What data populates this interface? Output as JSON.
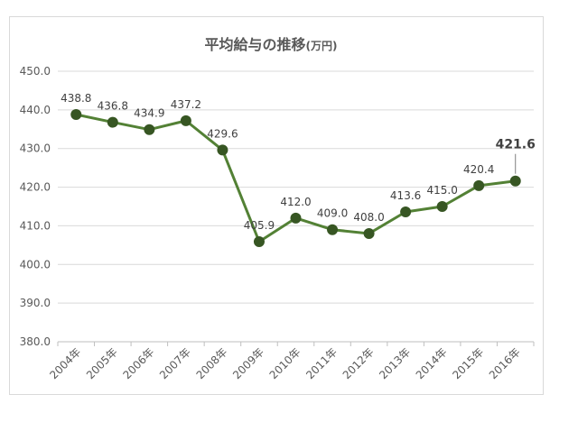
{
  "chart_data": {
    "type": "line",
    "title": "平均給与の推移",
    "title_unit": "(万円)",
    "categories": [
      "2004年",
      "2005年",
      "2006年",
      "2007年",
      "2008年",
      "2009年",
      "2010年",
      "2011年",
      "2012年",
      "2013年",
      "2014年",
      "2015年",
      "2016年"
    ],
    "series": [
      {
        "values": [
          438.8,
          436.8,
          434.9,
          437.2,
          429.6,
          405.9,
          412.0,
          409.0,
          408.0,
          413.6,
          415.0,
          420.4,
          421.6
        ],
        "color": "#4f7a28"
      }
    ],
    "data_labels": [
      "438.8",
      "436.8",
      "434.9",
      "437.2",
      "429.6",
      "405.9",
      "412.0",
      "409.0",
      "408.0",
      "413.6",
      "415.0",
      "420.4",
      "421.6"
    ],
    "ylim": [
      380,
      450
    ],
    "yticks": [
      "380.0",
      "390.0",
      "400.0",
      "410.0",
      "420.0",
      "430.0",
      "440.0",
      "450.0"
    ],
    "xlabel": "",
    "ylabel": "",
    "grid": true,
    "legend": "none",
    "marker_color": "#375623",
    "line_color": "#538135",
    "gridline_color": "#d9d9d9"
  }
}
